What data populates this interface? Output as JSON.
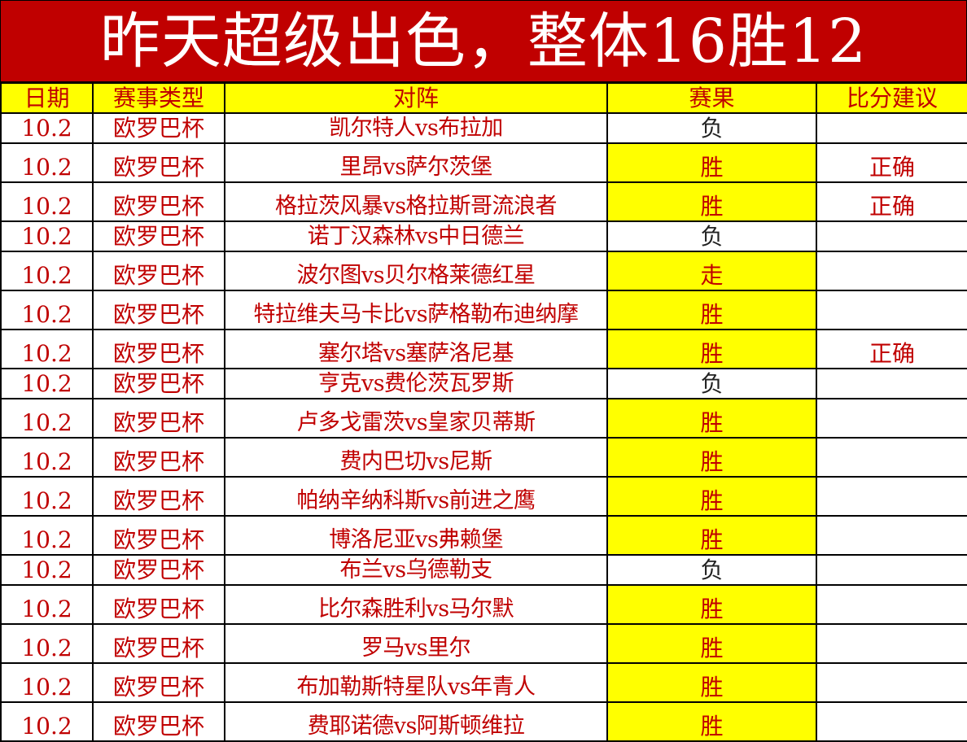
{
  "title": "昨天超级出色，整体16胜12",
  "colors": {
    "title_bg": "#c00000",
    "text": "#c00000",
    "highlight": "#ffff00",
    "loss_text": "#222222"
  },
  "headers": [
    "日期",
    "赛事类型",
    "对阵",
    "赛果",
    "比分建议"
  ],
  "rows": [
    {
      "date": "10.2",
      "league": "欧罗巴杯",
      "match": "凯尔特人vs布拉加",
      "result": "负",
      "score": ""
    },
    {
      "date": "10.2",
      "league": "欧罗巴杯",
      "match": "里昂vs萨尔茨堡",
      "result": "胜",
      "score": "正确"
    },
    {
      "date": "10.2",
      "league": "欧罗巴杯",
      "match": "格拉茨风暴vs格拉斯哥流浪者",
      "result": "胜",
      "score": "正确"
    },
    {
      "date": "10.2",
      "league": "欧罗巴杯",
      "match": "诺丁汉森林vs中日德兰",
      "result": "负",
      "score": ""
    },
    {
      "date": "10.2",
      "league": "欧罗巴杯",
      "match": "波尔图vs贝尔格莱德红星",
      "result": "走",
      "score": ""
    },
    {
      "date": "10.2",
      "league": "欧罗巴杯",
      "match": "特拉维夫马卡比vs萨格勒布迪纳摩",
      "result": "胜",
      "score": ""
    },
    {
      "date": "10.2",
      "league": "欧罗巴杯",
      "match": "塞尔塔vs塞萨洛尼基",
      "result": "胜",
      "score": "正确"
    },
    {
      "date": "10.2",
      "league": "欧罗巴杯",
      "match": "亨克vs费伦茨瓦罗斯",
      "result": "负",
      "score": ""
    },
    {
      "date": "10.2",
      "league": "欧罗巴杯",
      "match": "卢多戈雷茨vs皇家贝蒂斯",
      "result": "胜",
      "score": ""
    },
    {
      "date": "10.2",
      "league": "欧罗巴杯",
      "match": "费内巴切vs尼斯",
      "result": "胜",
      "score": ""
    },
    {
      "date": "10.2",
      "league": "欧罗巴杯",
      "match": "帕纳辛纳科斯vs前进之鹰",
      "result": "胜",
      "score": ""
    },
    {
      "date": "10.2",
      "league": "欧罗巴杯",
      "match": "博洛尼亚vs弗赖堡",
      "result": "胜",
      "score": ""
    },
    {
      "date": "10.2",
      "league": "欧罗巴杯",
      "match": "布兰vs乌德勒支",
      "result": "负",
      "score": ""
    },
    {
      "date": "10.2",
      "league": "欧罗巴杯",
      "match": "比尔森胜利vs马尔默",
      "result": "胜",
      "score": ""
    },
    {
      "date": "10.2",
      "league": "欧罗巴杯",
      "match": "罗马vs里尔",
      "result": "胜",
      "score": ""
    },
    {
      "date": "10.2",
      "league": "欧罗巴杯",
      "match": "布加勒斯特星队vs年青人",
      "result": "胜",
      "score": ""
    },
    {
      "date": "10.2",
      "league": "欧罗巴杯",
      "match": "费耶诺德vs阿斯顿维拉",
      "result": "胜",
      "score": ""
    }
  ]
}
